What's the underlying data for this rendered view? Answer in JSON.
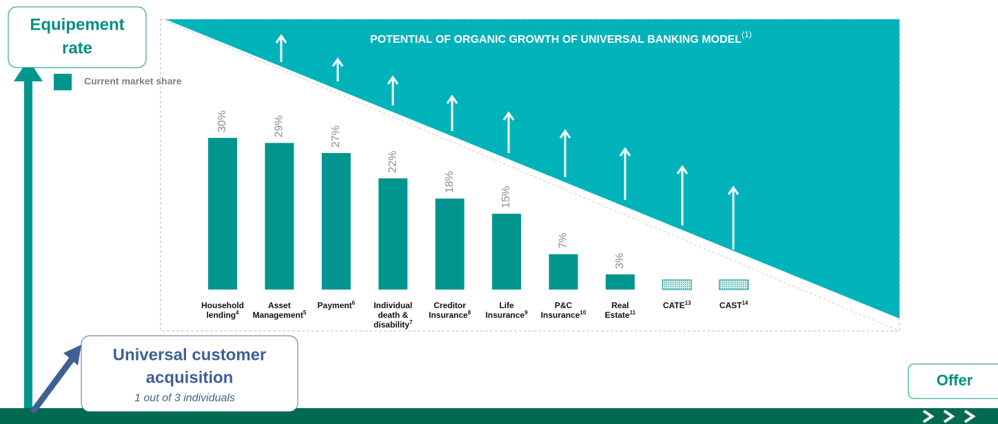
{
  "chart_data": {
    "type": "bar",
    "title": "POTENTIAL OF ORGANIC GROWTH OF UNIVERSAL BANKING MODEL",
    "title_note": "(1)",
    "y_axis_label": [
      "Equipement",
      "rate"
    ],
    "x_axis_label": "Offer",
    "annotation": {
      "title": [
        "Universal customer",
        "acquisition"
      ],
      "subtitle": "1 out of 3 individuals"
    },
    "legend": "Current market share",
    "categories": [
      [
        "Household",
        "lending"
      ],
      [
        "Asset",
        "Management"
      ],
      [
        "Payment"
      ],
      [
        "Individual",
        "death &",
        "disability"
      ],
      [
        "Creditor",
        "Insurance"
      ],
      [
        "Life",
        "Insurance"
      ],
      [
        "P&C",
        "Insurance"
      ],
      [
        "Real",
        "Estate"
      ],
      [
        "CATE"
      ],
      [
        "CAST"
      ]
    ],
    "category_notes": [
      "4",
      "5",
      "6",
      "7",
      "8",
      "9",
      "10",
      "11",
      "13",
      "14"
    ],
    "values": [
      30,
      29,
      27,
      22,
      18,
      15,
      7,
      3,
      null,
      null
    ],
    "value_labels": [
      "30%",
      "29%",
      "27%",
      "22%",
      "18%",
      "15%",
      "7%",
      "3%",
      null,
      null
    ],
    "color": "#00968f",
    "ylim": [
      0,
      30
    ]
  }
}
